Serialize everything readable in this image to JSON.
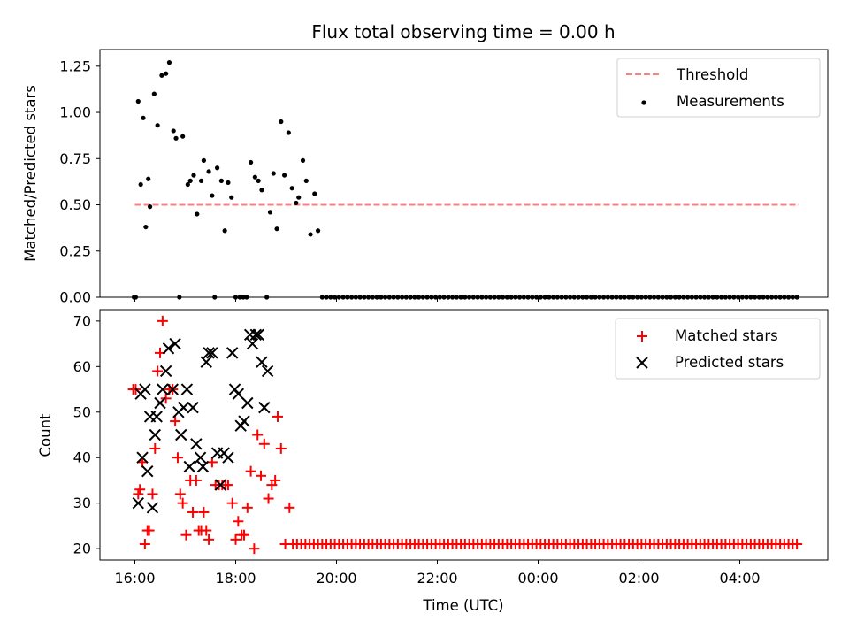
{
  "chart_data": [
    {
      "type": "scatter",
      "title": "Flux total observing time = 0.00 h",
      "xlabel": "",
      "ylabel": "Matched/Predicted stars",
      "xlim": [
        "15:40",
        "05:40"
      ],
      "ylim": [
        0,
        1.34
      ],
      "yticks": [
        "0.00",
        "0.25",
        "0.50",
        "0.75",
        "1.00",
        "1.25"
      ],
      "grid": false,
      "legend": "upper right",
      "threshold": {
        "name": "Threshold",
        "value": 0.5,
        "x_start": "16:00",
        "x_end": "05:10",
        "color": "#ff7f7f",
        "style": "dashed"
      },
      "series": [
        {
          "name": "Measurements",
          "marker": "dot",
          "color": "#000000",
          "points": [
            [
              "15:59",
              0
            ],
            [
              "16:01",
              0
            ],
            [
              "16:04",
              1.06
            ],
            [
              "16:07",
              0.61
            ],
            [
              "16:10",
              0.97
            ],
            [
              "16:13",
              0.38
            ],
            [
              "16:16",
              0.64
            ],
            [
              "16:18",
              0.49
            ],
            [
              "16:23",
              1.1
            ],
            [
              "16:27",
              0.93
            ],
            [
              "16:32",
              1.2
            ],
            [
              "16:37",
              1.21
            ],
            [
              "16:41",
              1.27
            ],
            [
              "16:46",
              0.9
            ],
            [
              "16:49",
              0.86
            ],
            [
              "16:53",
              0
            ],
            [
              "16:57",
              0.87
            ],
            [
              "17:03",
              0.61
            ],
            [
              "17:06",
              0.63
            ],
            [
              "17:10",
              0.66
            ],
            [
              "17:14",
              0.45
            ],
            [
              "17:19",
              0.63
            ],
            [
              "17:22",
              0.74
            ],
            [
              "17:28",
              0.68
            ],
            [
              "17:32",
              0.55
            ],
            [
              "17:35",
              0
            ],
            [
              "17:38",
              0.7
            ],
            [
              "17:43",
              0.63
            ],
            [
              "17:47",
              0.36
            ],
            [
              "17:51",
              0.62
            ],
            [
              "17:55",
              0.54
            ],
            [
              "18:00",
              0
            ],
            [
              "18:05",
              0
            ],
            [
              "18:09",
              0
            ],
            [
              "18:13",
              0
            ],
            [
              "18:18",
              0.73
            ],
            [
              "18:23",
              0.65
            ],
            [
              "18:27",
              0.63
            ],
            [
              "18:31",
              0.58
            ],
            [
              "18:37",
              0
            ],
            [
              "18:41",
              0.46
            ],
            [
              "18:45",
              0.67
            ],
            [
              "18:49",
              0.37
            ],
            [
              "18:54",
              0.95
            ],
            [
              "18:58",
              0.66
            ],
            [
              "19:03",
              0.89
            ],
            [
              "19:07",
              0.59
            ],
            [
              "19:12",
              0.51
            ],
            [
              "19:15",
              0.54
            ],
            [
              "19:20",
              0.74
            ],
            [
              "19:24",
              0.63
            ],
            [
              "19:29",
              0.34
            ],
            [
              "19:34",
              0.56
            ],
            [
              "19:38",
              0.36
            ]
          ],
          "zero_series_from": "19:43",
          "zero_series_to": "05:10",
          "zero_series_step_minutes": 5
        }
      ]
    },
    {
      "type": "scatter",
      "title": "",
      "xlabel": "Time (UTC)",
      "ylabel": "Count",
      "xlim": [
        "15:40",
        "05:40"
      ],
      "ylim": [
        17.5,
        72.5
      ],
      "xticks": [
        "16:00",
        "18:00",
        "20:00",
        "22:00",
        "00:00",
        "02:00",
        "04:00"
      ],
      "yticks": [
        "20",
        "30",
        "40",
        "50",
        "60",
        "70"
      ],
      "grid": false,
      "legend": "upper right",
      "series": [
        {
          "name": "Matched stars",
          "marker": "plus",
          "color": "#ff0000",
          "points": [
            [
              "15:58",
              55
            ],
            [
              "16:01",
              55
            ],
            [
              "16:04",
              32
            ],
            [
              "16:06",
              33
            ],
            [
              "16:09",
              39
            ],
            [
              "16:12",
              21
            ],
            [
              "16:15",
              24
            ],
            [
              "16:17",
              24
            ],
            [
              "16:21",
              32
            ],
            [
              "16:24",
              42
            ],
            [
              "16:27",
              59
            ],
            [
              "16:30",
              63
            ],
            [
              "16:33",
              70
            ],
            [
              "16:37",
              53
            ],
            [
              "16:41",
              55
            ],
            [
              "16:45",
              55
            ],
            [
              "16:48",
              48
            ],
            [
              "16:51",
              40
            ],
            [
              "16:54",
              32
            ],
            [
              "16:57",
              30
            ],
            [
              "17:01",
              23
            ],
            [
              "17:06",
              35
            ],
            [
              "17:09",
              28
            ],
            [
              "17:13",
              35
            ],
            [
              "17:16",
              24
            ],
            [
              "17:19",
              24
            ],
            [
              "17:22",
              28
            ],
            [
              "17:25",
              24
            ],
            [
              "17:28",
              22
            ],
            [
              "17:32",
              39
            ],
            [
              "17:36",
              34
            ],
            [
              "17:40",
              34
            ],
            [
              "17:44",
              34
            ],
            [
              "17:48",
              34
            ],
            [
              "17:51",
              34
            ],
            [
              "17:56",
              30
            ],
            [
              "18:00",
              22
            ],
            [
              "18:03",
              26
            ],
            [
              "18:07",
              23
            ],
            [
              "18:10",
              23
            ],
            [
              "18:14",
              29
            ],
            [
              "18:18",
              37
            ],
            [
              "18:22",
              20
            ],
            [
              "18:26",
              45
            ],
            [
              "18:30",
              36
            ],
            [
              "18:34",
              43
            ],
            [
              "18:39",
              31
            ],
            [
              "18:43",
              34
            ],
            [
              "18:47",
              35
            ],
            [
              "18:50",
              49
            ],
            [
              "18:54",
              42
            ],
            [
              "18:59",
              21
            ],
            [
              "19:04",
              29
            ]
          ],
          "constant_series_from": "19:08",
          "constant_series_to": "05:10",
          "constant_series_step_minutes": 5,
          "constant_series_value": 21
        },
        {
          "name": "Predicted stars",
          "marker": "x",
          "color": "#000000",
          "points": [
            [
              "16:04",
              30
            ],
            [
              "16:07",
              54
            ],
            [
              "16:09",
              40
            ],
            [
              "16:12",
              55
            ],
            [
              "16:15",
              37
            ],
            [
              "16:18",
              49
            ],
            [
              "16:21",
              29
            ],
            [
              "16:24",
              45
            ],
            [
              "16:26",
              49
            ],
            [
              "16:30",
              52
            ],
            [
              "16:33",
              55
            ],
            [
              "16:37",
              59
            ],
            [
              "16:40",
              64
            ],
            [
              "16:45",
              55
            ],
            [
              "16:48",
              65
            ],
            [
              "16:52",
              50
            ],
            [
              "16:55",
              45
            ],
            [
              "16:58",
              51
            ],
            [
              "17:02",
              55
            ],
            [
              "17:05",
              38
            ],
            [
              "17:09",
              51
            ],
            [
              "17:13",
              43
            ],
            [
              "17:18",
              40
            ],
            [
              "17:21",
              38
            ],
            [
              "17:25",
              61
            ],
            [
              "17:28",
              63
            ],
            [
              "17:32",
              63
            ],
            [
              "17:38",
              41
            ],
            [
              "17:42",
              34
            ],
            [
              "17:46",
              41
            ],
            [
              "17:51",
              40
            ],
            [
              "17:56",
              63
            ],
            [
              "17:59",
              55
            ],
            [
              "18:03",
              54
            ],
            [
              "18:06",
              47
            ],
            [
              "18:10",
              48
            ],
            [
              "18:14",
              52
            ],
            [
              "18:17",
              67
            ],
            [
              "18:20",
              65
            ],
            [
              "18:24",
              67
            ],
            [
              "18:27",
              67
            ],
            [
              "18:31",
              61
            ],
            [
              "18:34",
              51
            ],
            [
              "18:38",
              59
            ]
          ]
        }
      ]
    }
  ]
}
